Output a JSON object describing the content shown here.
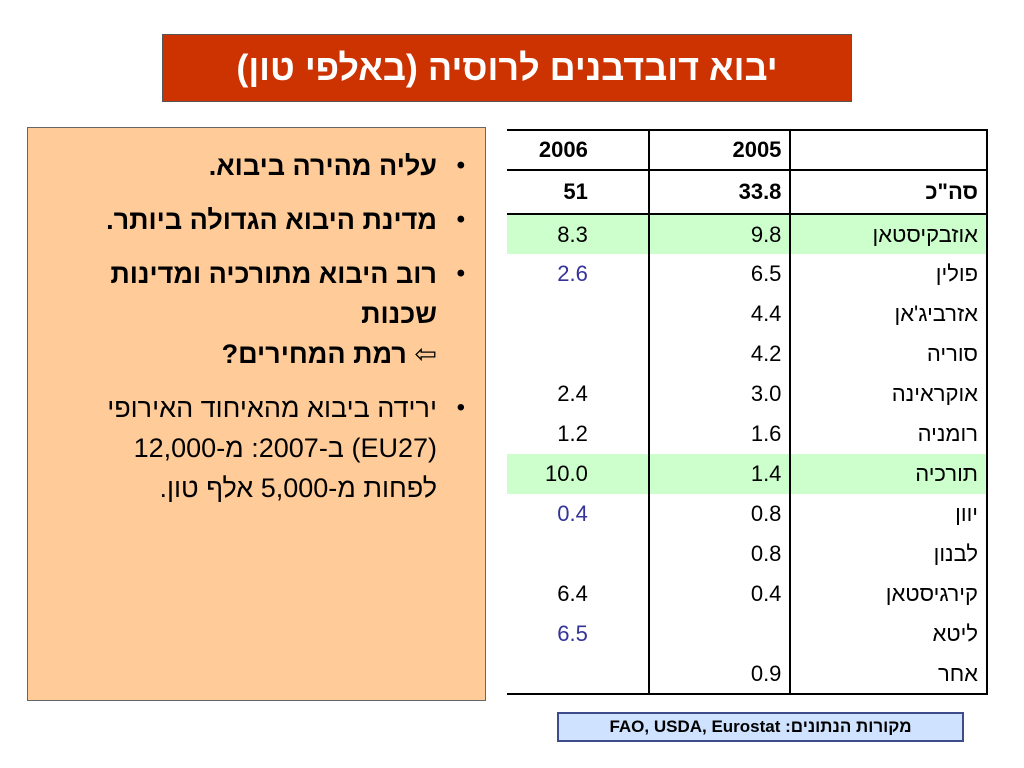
{
  "title": "יבוא דובדבנים לרוסיה (באלפי טון)",
  "bullets": [
    {
      "text": "עליה מהירה ביבוא.",
      "bold": true
    },
    {
      "text": "מדינת היבוא הגדולה ביותר.",
      "bold": true
    },
    {
      "text_line1": "רוב היבוא מתורכיה ומדינות שכנות",
      "arrow": "⇦",
      "text_line2": "רמת המחירים?",
      "bold": true
    },
    {
      "text": "ירידה ביבוא מהאיחוד האירופי (EU27) ב-2007: מ-12,000 לפחות מ-5,000 אלף טון.",
      "bold": false
    }
  ],
  "table": {
    "header": {
      "country": "",
      "y2005": "2005",
      "y2006": "2006"
    },
    "total": {
      "country": "סה\"כ",
      "y2005": "33.8",
      "y2006": "51"
    },
    "rows": [
      {
        "country": "אוזבקיסטאן",
        "y2005": "9.8",
        "y2006": "8.3",
        "highlight": true,
        "blue2006": false
      },
      {
        "country": "פולין",
        "y2005": "6.5",
        "y2006": "2.6",
        "highlight": false,
        "blue2006": true
      },
      {
        "country": "אזרביג'אן",
        "y2005": "4.4",
        "y2006": "",
        "highlight": false,
        "blue2006": false
      },
      {
        "country": "סוריה",
        "y2005": "4.2",
        "y2006": "",
        "highlight": false,
        "blue2006": false
      },
      {
        "country": "אוקראינה",
        "y2005": "3.0",
        "y2006": "2.4",
        "highlight": false,
        "blue2006": false
      },
      {
        "country": "רומניה",
        "y2005": "1.6",
        "y2006": "1.2",
        "highlight": false,
        "blue2006": false
      },
      {
        "country": "תורכיה",
        "y2005": "1.4",
        "y2006": "10.0",
        "highlight": true,
        "blue2006": false
      },
      {
        "country": "יוון",
        "y2005": "0.8",
        "y2006": "0.4",
        "highlight": false,
        "blue2006": true
      },
      {
        "country": "לבנון",
        "y2005": "0.8",
        "y2006": "",
        "highlight": false,
        "blue2006": false
      },
      {
        "country": "קירגיסטאן",
        "y2005": "0.4",
        "y2006": "6.4",
        "highlight": false,
        "blue2006": false
      },
      {
        "country": "ליטא",
        "y2005": "",
        "y2006": "6.5",
        "highlight": false,
        "blue2006": true
      },
      {
        "country": "אחר",
        "y2005": "0.9",
        "y2006": "",
        "highlight": false,
        "blue2006": false
      }
    ]
  },
  "source": "מקורות הנתונים: FAO, USDA, Eurostat",
  "colors": {
    "title_bg": "#cc3300",
    "panel_bg": "#ffcc99",
    "highlight_row": "#ccffcc",
    "blue_value": "#333399",
    "source_bg": "#cfe2ff"
  }
}
